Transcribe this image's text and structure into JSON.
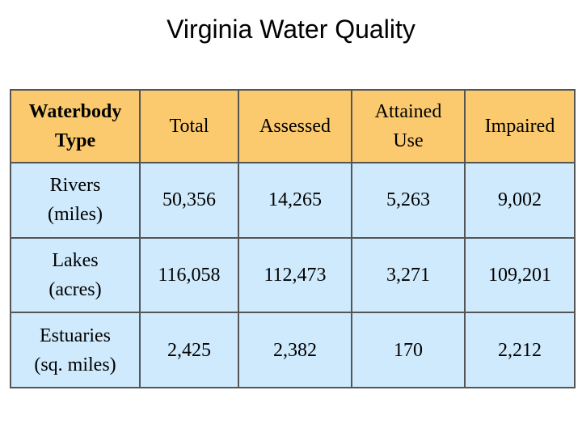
{
  "slide": {
    "title": "Virginia Water Quality"
  },
  "table": {
    "header": {
      "corner_line1": "Waterbody",
      "corner_line2": "Type",
      "total": "Total",
      "assessed": "Assessed",
      "attained_line1": "Attained",
      "attained_line2": "Use",
      "impaired": "Impaired"
    },
    "rows": [
      {
        "label_line1": "Rivers",
        "label_line2": "(miles)",
        "total": "50,356",
        "assessed": "14,265",
        "attained": "5,263",
        "impaired": "9,002"
      },
      {
        "label_line1": "Lakes",
        "label_line2": "(acres)",
        "total": "116,058",
        "assessed": "112,473",
        "attained": "3,271",
        "impaired": "109,201"
      },
      {
        "label_line1": "Estuaries",
        "label_line2": "(sq. miles)",
        "total": "2,425",
        "assessed": "2,382",
        "attained": "170",
        "impaired": "2,212"
      }
    ]
  },
  "colors": {
    "header_fill": "#fbc96e",
    "body_fill": "#cfeafc",
    "grid_line": "#555555"
  }
}
